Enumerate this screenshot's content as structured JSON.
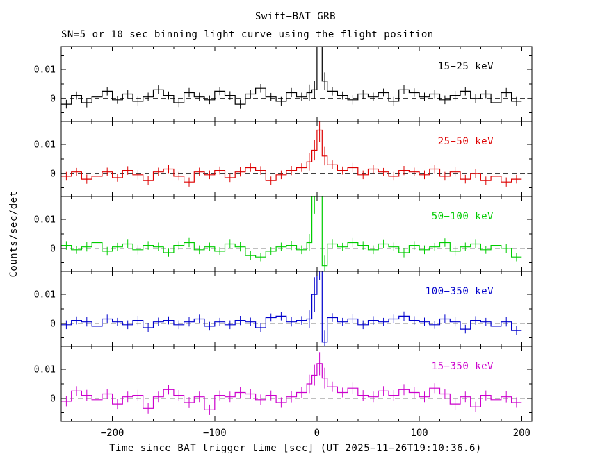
{
  "header": {
    "title": "Swift−BAT GRB",
    "subtitle": "SN=5 or 10 sec binning light curve using the flight position"
  },
  "axes": {
    "xlabel": "Time since BAT trigger time [sec] (UT 2025−11−26T19:10:36.6)",
    "ylabel": "Counts/sec/det",
    "x_ticks": [
      {
        "value": -200,
        "label": "−200"
      },
      {
        "value": -100,
        "label": "−100"
      },
      {
        "value": 0,
        "label": "0"
      },
      {
        "value": 100,
        "label": "100"
      },
      {
        "value": 200,
        "label": "200"
      }
    ],
    "y_ticks": [
      {
        "value": 0.01,
        "label": "0.01"
      },
      {
        "value": 0,
        "label": "0"
      }
    ]
  },
  "chart_data": {
    "type": "line",
    "style": "stepped histogram light curves with vertical error bars and dashed zero line, 5 stacked panels",
    "panels": 5,
    "xlim": [
      -250,
      210
    ],
    "ylim": [
      -0.008,
      0.018
    ],
    "value_scale": 0.001,
    "zero_line": 0,
    "bin_edges": [
      -250,
      -240,
      -230,
      -220,
      -210,
      -200,
      -190,
      -180,
      -170,
      -160,
      -150,
      -140,
      -130,
      -120,
      -110,
      -100,
      -90,
      -80,
      -70,
      -60,
      -50,
      -40,
      -30,
      -20,
      -10,
      -5,
      0,
      5,
      10,
      20,
      30,
      40,
      50,
      60,
      70,
      80,
      90,
      100,
      110,
      120,
      130,
      140,
      150,
      160,
      170,
      180,
      190,
      200
    ],
    "series": [
      {
        "name": "15−25 keV",
        "color": "#000000",
        "values": [
          -2,
          1,
          -1.5,
          0.5,
          2.5,
          -0.5,
          1.5,
          -1,
          0.5,
          3,
          1,
          -1.5,
          2,
          0.5,
          -0.5,
          2.5,
          1,
          -2,
          1.5,
          3.5,
          0.5,
          -1,
          2,
          0.5,
          2,
          3,
          30,
          6,
          2.5,
          1,
          -0.5,
          1.5,
          0.5,
          2,
          -1,
          3,
          2,
          0.5,
          1.5,
          -0.5,
          1,
          2.5,
          0,
          1.5,
          -1.5,
          2,
          -1
        ],
        "errors": [
          1.5,
          1.4,
          1.6,
          1.5,
          1.5,
          1.4,
          1.5,
          1.6,
          1.5,
          1.5,
          1.4,
          1.5,
          1.6,
          1.5,
          1.5,
          1.4,
          1.5,
          1.6,
          1.5,
          1.5,
          1.4,
          1.5,
          1.6,
          1.5,
          2.8,
          3,
          5,
          3,
          1.5,
          1.4,
          1.6,
          1.5,
          1.5,
          1.4,
          1.5,
          1.6,
          1.5,
          1.5,
          1.4,
          1.5,
          1.6,
          1.5,
          1.5,
          1.4,
          1.5,
          1.6,
          1.5
        ]
      },
      {
        "name": "25−50 keV",
        "color": "#dd0000",
        "values": [
          -1,
          0.5,
          -2,
          -1,
          0.5,
          -1.5,
          1,
          -0.5,
          -2.5,
          0.5,
          1.5,
          -1,
          -3,
          0.5,
          -0.5,
          1,
          -1.5,
          0.5,
          2,
          1,
          -2.5,
          -0.5,
          1,
          2,
          4,
          8,
          15,
          6,
          3,
          1,
          2,
          -0.5,
          1.5,
          0.5,
          -1,
          1,
          0.5,
          -0.5,
          1.5,
          -1,
          0.5,
          -2,
          0,
          -2.5,
          -1,
          -3,
          -2
        ],
        "errors": [
          1.5,
          1.4,
          1.6,
          1.5,
          1.5,
          1.4,
          1.5,
          1.6,
          1.5,
          1.5,
          1.4,
          1.5,
          1.6,
          1.5,
          1.5,
          1.4,
          1.5,
          1.6,
          1.5,
          1.5,
          1.4,
          1.5,
          1.6,
          1.5,
          3,
          3.5,
          4,
          3.2,
          1.5,
          1.4,
          1.6,
          1.5,
          1.5,
          1.4,
          1.5,
          1.6,
          1.5,
          1.5,
          1.4,
          1.5,
          1.6,
          1.5,
          1.5,
          1.4,
          1.5,
          1.6,
          1.5
        ]
      },
      {
        "name": "50−100 keV",
        "color": "#00cc00",
        "values": [
          1,
          -0.5,
          0.5,
          2,
          -1,
          0.5,
          1.5,
          -0.5,
          1,
          0.5,
          -1.5,
          1,
          2,
          -0.5,
          0.5,
          -1,
          1.5,
          0.5,
          -2.5,
          -3,
          -1,
          0.5,
          1,
          -0.5,
          2,
          18,
          30,
          -6,
          1.5,
          0.5,
          2,
          1,
          -0.5,
          1.5,
          0.5,
          -1.5,
          1,
          -0.5,
          0.5,
          2,
          -1,
          0.5,
          1.5,
          -0.5,
          1,
          0,
          -3
        ],
        "errors": [
          1.5,
          1.4,
          1.6,
          1.5,
          1.5,
          1.4,
          1.5,
          1.6,
          1.5,
          1.5,
          1.4,
          1.5,
          1.6,
          1.5,
          1.5,
          1.4,
          1.5,
          1.6,
          1.5,
          1.5,
          1.4,
          1.5,
          1.6,
          1.5,
          3,
          6,
          8,
          3.5,
          1.5,
          1.4,
          1.6,
          1.5,
          1.5,
          1.4,
          1.5,
          1.6,
          1.5,
          1.5,
          1.4,
          1.5,
          1.6,
          1.5,
          1.5,
          1.4,
          1.5,
          1.6,
          1.5
        ]
      },
      {
        "name": "100−350 keV",
        "color": "#0000cc",
        "values": [
          -0.5,
          1,
          0.5,
          -1,
          1.5,
          0.5,
          -0.5,
          1,
          -1.5,
          0.5,
          1,
          -0.5,
          0.5,
          1.5,
          -1,
          0.5,
          -0.5,
          1,
          0.5,
          -1.5,
          2,
          2.5,
          0.5,
          1,
          1.5,
          10,
          25,
          -6.5,
          2,
          0.5,
          1.5,
          -0.5,
          1,
          0.5,
          1.5,
          2.5,
          1,
          0.5,
          -0.5,
          1.5,
          0.5,
          -2,
          1,
          0.5,
          -1,
          0.5,
          -2.5
        ],
        "errors": [
          1.5,
          1.4,
          1.6,
          1.5,
          1.5,
          1.4,
          1.5,
          1.6,
          1.5,
          1.5,
          1.4,
          1.5,
          1.6,
          1.5,
          1.5,
          1.4,
          1.5,
          1.6,
          1.5,
          1.5,
          1.4,
          1.5,
          1.6,
          1.5,
          3,
          6,
          10,
          4,
          1.5,
          1.4,
          1.6,
          1.5,
          1.5,
          1.4,
          1.5,
          1.6,
          1.5,
          1.5,
          1.4,
          1.5,
          1.6,
          1.5,
          1.5,
          1.4,
          1.5,
          1.6,
          1.5
        ]
      },
      {
        "name": "15−350 keV",
        "color": "#cc00cc",
        "values": [
          -1,
          2.5,
          1,
          -0.5,
          1.5,
          -2,
          0.5,
          1,
          -3.5,
          0.5,
          3,
          1,
          -1.5,
          0.5,
          -4,
          1,
          0.5,
          2,
          1.5,
          -0.5,
          1,
          -1.5,
          0.5,
          2,
          5,
          8,
          12,
          7,
          4,
          2,
          3.5,
          1,
          0.5,
          2.5,
          1,
          3,
          2,
          0.5,
          3.5,
          1.5,
          -2,
          0.5,
          -3,
          1,
          -0.5,
          0.5,
          -1.5
        ],
        "errors": [
          1.8,
          1.7,
          1.9,
          1.8,
          1.8,
          1.7,
          1.8,
          1.9,
          1.8,
          1.8,
          1.7,
          1.8,
          1.9,
          1.8,
          1.8,
          1.7,
          1.8,
          1.9,
          1.8,
          1.8,
          1.7,
          1.8,
          1.9,
          1.8,
          3.2,
          3.6,
          4,
          3.6,
          1.8,
          1.7,
          1.9,
          1.8,
          1.8,
          1.7,
          1.8,
          1.9,
          1.8,
          1.8,
          1.7,
          1.8,
          1.9,
          1.8,
          1.8,
          1.7,
          1.8,
          1.9,
          1.8
        ]
      }
    ]
  }
}
